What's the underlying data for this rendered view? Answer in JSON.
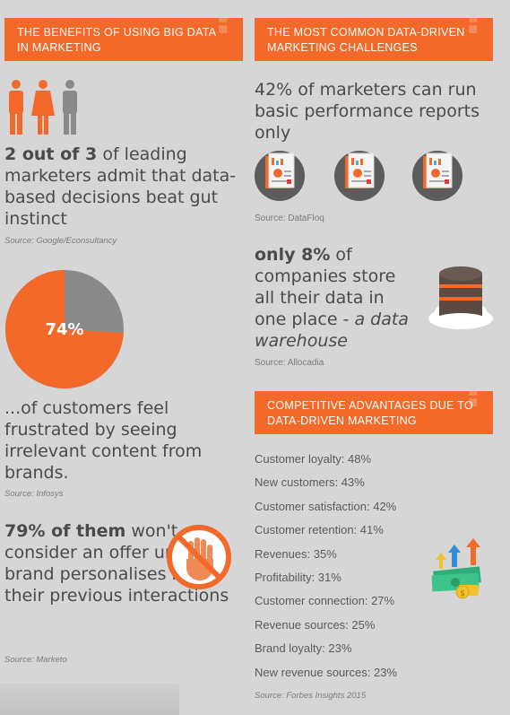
{
  "left": {
    "banner": "THE BENEFITS OF USING BIG DATA IN MARKETING",
    "stat1": {
      "bold": "2 out of 3",
      "rest": " of leading marketers admit that data-based decisions beat gut instinct"
    },
    "source1": "Source: Google/Econsultancy",
    "pie": {
      "percent_label": "74%",
      "value": 74,
      "color_main": "#f2692a",
      "color_rest": "#8a8a8a"
    },
    "stat2": "...of customers feel frustrated by seeing irrelevant content from brands.",
    "source2": "Source: Infosys",
    "stat3": {
      "bold": "79% of them",
      "rest": " won't consider an offer unless a brand personalises it to their previous interactions"
    },
    "source3": "Source: Marketo"
  },
  "right": {
    "banner1": "THE MOST COMMON DATA-DRIVEN MARKETING CHALLENGES",
    "stat1": "42% of marketers can run basic performance reports only",
    "source1": "Source: DataFloq",
    "stat2": {
      "bold": "only 8%",
      "rest": " of companies store all their data in one place - ",
      "italic": "a data warehouse"
    },
    "source2": "Source: Allocadia",
    "banner2": "COMPETITIVE ADVANTAGES DUE TO DATA-DRIVEN MARKETING",
    "advantages": [
      "Customer loyalty: 48%",
      "New customers: 43%",
      "Customer satisfaction: 42%",
      "Customer retention: 41%",
      "Revenues: 35%",
      "Profitability: 31%",
      "Customer connection: 27%",
      "Revenue sources: 25%",
      "Brand loyalty: 23%",
      "New revenue sources: 23%"
    ],
    "source3": "Source: Forbes Insights 2015"
  },
  "icons": {
    "people": "people-icon",
    "hand": "no-hand-icon",
    "report": "report-icon",
    "database": "database-cloud-icon",
    "money": "money-growth-icon"
  }
}
